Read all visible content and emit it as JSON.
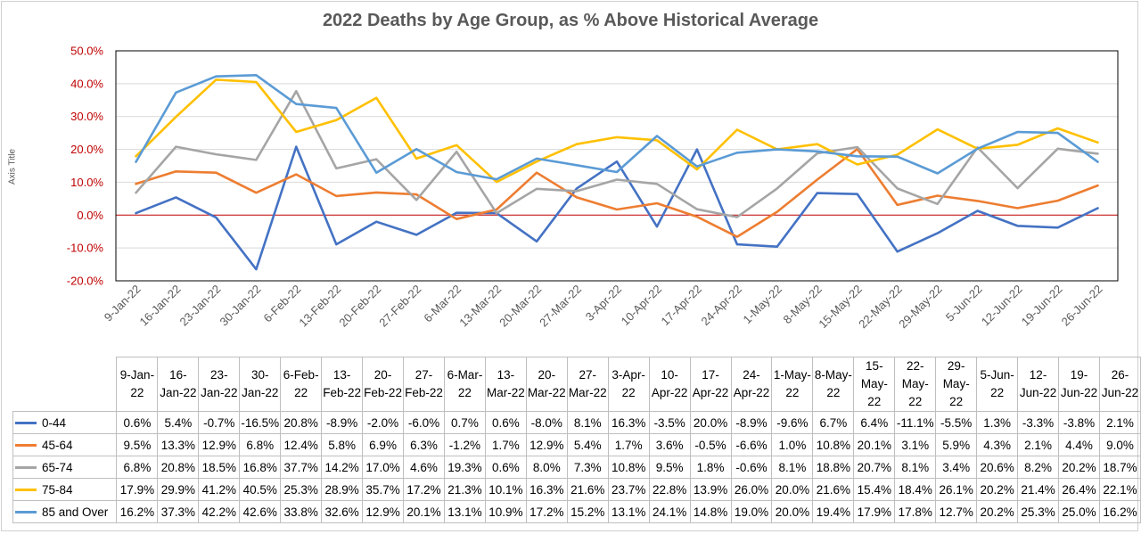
{
  "chart_data": {
    "type": "line",
    "title": "2022 Deaths by Age Group, as % Above Historical Average",
    "ylabel": "Axis Title",
    "xlabel": "",
    "ylim": [
      -20,
      50
    ],
    "yticks": [
      "50.0%",
      "40.0%",
      "30.0%",
      "20.0%",
      "10.0%",
      "0.0%",
      "-10.0%",
      "-20.0%"
    ],
    "ytick_values": [
      50,
      40,
      30,
      20,
      10,
      0,
      -10,
      -20
    ],
    "ytick_color": "#c00000",
    "zero_line_color": "#c00000",
    "grid": true,
    "legend": "data-table",
    "categories": [
      "9-Jan-22",
      "16-Jan-22",
      "23-Jan-22",
      "30-Jan-22",
      "6-Feb-22",
      "13-Feb-22",
      "20-Feb-22",
      "27-Feb-22",
      "6-Mar-22",
      "13-Mar-22",
      "20-Mar-22",
      "27-Mar-22",
      "3-Apr-22",
      "10-Apr-22",
      "17-Apr-22",
      "24-Apr-22",
      "1-May-22",
      "8-May-22",
      "15-May-22",
      "22-May-22",
      "29-May-22",
      "5-Jun-22",
      "12-Jun-22",
      "19-Jun-22",
      "26-Jun-22"
    ],
    "table_headers": [
      "9-Jan-22",
      "16-Jan-22",
      "23-Jan-22",
      "30-Jan-22",
      "6-Feb-22",
      "13-Feb-22",
      "20-Feb-22",
      "27-Feb-22",
      "6-Mar-22",
      "13-Mar-22",
      "20-Mar-22",
      "27-Mar-22",
      "3-Apr-22",
      "10-Apr-22",
      "17-Apr-22",
      "24-Apr-22",
      "1-May-22",
      "8-May-22",
      "15-May-22",
      "22-May-22",
      "29-May-22",
      "5-Jun-22",
      "12-Jun-22",
      "19-Jun-22",
      "26-Jun-22"
    ],
    "series": [
      {
        "name": "0-44",
        "color": "#4472c4",
        "values": [
          0.6,
          5.4,
          -0.7,
          -16.5,
          20.8,
          -8.9,
          -2.0,
          -6.0,
          0.7,
          0.6,
          -8.0,
          8.1,
          16.3,
          -3.5,
          20.0,
          -8.9,
          -9.6,
          6.7,
          6.4,
          -11.1,
          -5.5,
          1.3,
          -3.3,
          -3.8,
          2.1
        ],
        "labels": [
          "0.6%",
          "5.4%",
          "-0.7%",
          "-16.5%",
          "20.8%",
          "-8.9%",
          "-2.0%",
          "-6.0%",
          "0.7%",
          "0.6%",
          "-8.0%",
          "8.1%",
          "16.3%",
          "-3.5%",
          "20.0%",
          "-8.9%",
          "-9.6%",
          "6.7%",
          "6.4%",
          "-11.1%",
          "-5.5%",
          "1.3%",
          "-3.3%",
          "-3.8%",
          "2.1%"
        ]
      },
      {
        "name": "45-64",
        "color": "#ed7d31",
        "values": [
          9.5,
          13.3,
          12.9,
          6.8,
          12.4,
          5.8,
          6.9,
          6.3,
          -1.2,
          1.7,
          12.9,
          5.4,
          1.7,
          3.6,
          -0.5,
          -6.6,
          1.0,
          10.8,
          20.1,
          3.1,
          5.9,
          4.3,
          2.1,
          4.4,
          9.0
        ],
        "labels": [
          "9.5%",
          "13.3%",
          "12.9%",
          "6.8%",
          "12.4%",
          "5.8%",
          "6.9%",
          "6.3%",
          "-1.2%",
          "1.7%",
          "12.9%",
          "5.4%",
          "1.7%",
          "3.6%",
          "-0.5%",
          "-6.6%",
          "1.0%",
          "10.8%",
          "20.1%",
          "3.1%",
          "5.9%",
          "4.3%",
          "2.1%",
          "4.4%",
          "9.0%"
        ]
      },
      {
        "name": "65-74",
        "color": "#a5a5a5",
        "values": [
          6.8,
          20.8,
          18.5,
          16.8,
          37.7,
          14.2,
          17.0,
          4.6,
          19.3,
          0.6,
          8.0,
          7.3,
          10.8,
          9.5,
          1.8,
          -0.6,
          8.1,
          18.8,
          20.7,
          8.1,
          3.4,
          20.6,
          8.2,
          20.2,
          18.7
        ],
        "labels": [
          "6.8%",
          "20.8%",
          "18.5%",
          "16.8%",
          "37.7%",
          "14.2%",
          "17.0%",
          "4.6%",
          "19.3%",
          "0.6%",
          "8.0%",
          "7.3%",
          "10.8%",
          "9.5%",
          "1.8%",
          "-0.6%",
          "8.1%",
          "18.8%",
          "20.7%",
          "8.1%",
          "3.4%",
          "20.6%",
          "8.2%",
          "20.2%",
          "18.7%"
        ]
      },
      {
        "name": "75-84",
        "color": "#ffc000",
        "values": [
          17.9,
          29.9,
          41.2,
          40.5,
          25.3,
          28.9,
          35.7,
          17.2,
          21.3,
          10.1,
          16.3,
          21.6,
          23.7,
          22.8,
          13.9,
          26.0,
          20.0,
          21.6,
          15.4,
          18.4,
          26.1,
          20.2,
          21.4,
          26.4,
          22.1
        ],
        "labels": [
          "17.9%",
          "29.9%",
          "41.2%",
          "40.5%",
          "25.3%",
          "28.9%",
          "35.7%",
          "17.2%",
          "21.3%",
          "10.1%",
          "16.3%",
          "21.6%",
          "23.7%",
          "22.8%",
          "13.9%",
          "26.0%",
          "20.0%",
          "21.6%",
          "15.4%",
          "18.4%",
          "26.1%",
          "20.2%",
          "21.4%",
          "26.4%",
          "22.1%"
        ]
      },
      {
        "name": "85 and Over",
        "color": "#5b9bd5",
        "values": [
          16.2,
          37.3,
          42.2,
          42.6,
          33.8,
          32.6,
          12.9,
          20.1,
          13.1,
          10.9,
          17.2,
          15.2,
          13.1,
          24.1,
          14.8,
          19.0,
          20.0,
          19.4,
          17.9,
          17.8,
          12.7,
          20.2,
          25.3,
          25.0,
          16.2
        ],
        "labels": [
          "16.2%",
          "37.3%",
          "42.2%",
          "42.6%",
          "33.8%",
          "32.6%",
          "12.9%",
          "20.1%",
          "13.1%",
          "10.9%",
          "17.2%",
          "15.2%",
          "13.1%",
          "24.1%",
          "14.8%",
          "19.0%",
          "20.0%",
          "19.4%",
          "17.9%",
          "17.8%",
          "12.7%",
          "20.2%",
          "25.3%",
          "25.0%",
          "16.2%"
        ]
      }
    ]
  }
}
